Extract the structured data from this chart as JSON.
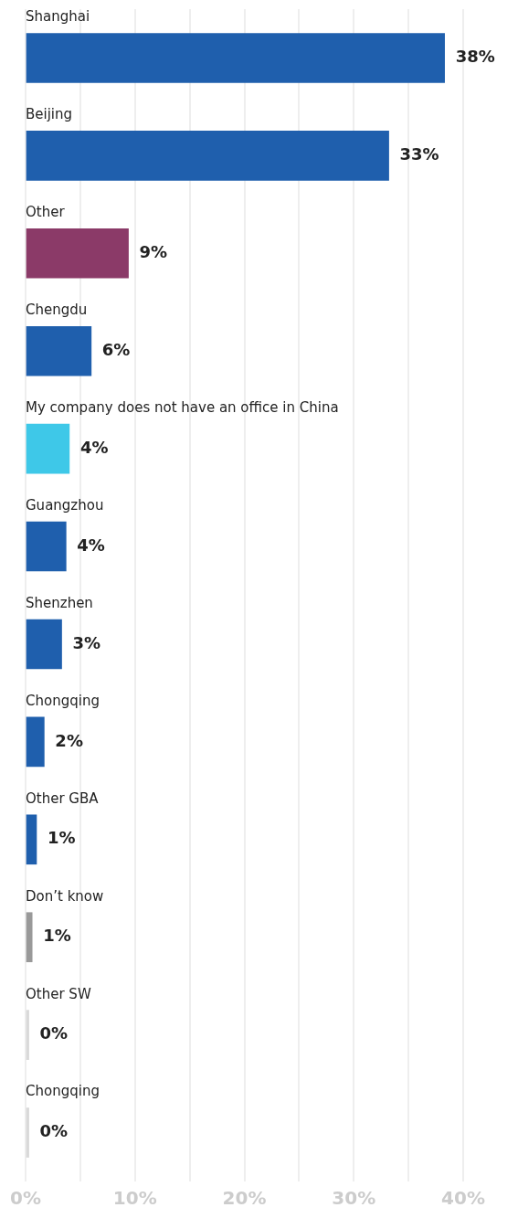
{
  "chart_data": {
    "type": "bar",
    "orientation": "horizontal",
    "categories": [
      "Shanghai",
      "Beijing",
      "Other",
      "Chengdu",
      "My company does not have an office in China",
      "Guangzhou",
      "Shenzhen",
      "Chongqing",
      "Other GBA",
      "Don’t know",
      "Other SW",
      "Chongqing"
    ],
    "values": [
      38.3,
      33.2,
      9.4,
      6,
      4,
      3.7,
      3.3,
      1.7,
      1,
      0.6,
      0.3,
      0.3
    ],
    "value_labels": [
      "38%",
      "33%",
      "9%",
      "6%",
      "4%",
      "4%",
      "3%",
      "2%",
      "1%",
      "1%",
      "0%",
      "0%"
    ],
    "colors": [
      "#1f5fad",
      "#1f5fad",
      "#8b3a68",
      "#1f5fad",
      "#3ec8e8",
      "#1f5fad",
      "#1f5fad",
      "#1f5fad",
      "#1f5fad",
      "#999999",
      "#d9d9d9",
      "#d9d9d9"
    ],
    "xlim": [
      0,
      40
    ],
    "xticks": [
      {
        "value": 0,
        "label": "0%"
      },
      {
        "value": 5,
        "label": null
      },
      {
        "value": 10,
        "label": "10%"
      },
      {
        "value": 15,
        "label": null
      },
      {
        "value": 20,
        "label": "20%"
      },
      {
        "value": 25,
        "label": null
      },
      {
        "value": 30,
        "label": "30%"
      },
      {
        "value": 35,
        "label": null
      },
      {
        "value": 40,
        "label": "40%"
      }
    ],
    "grid": "x",
    "legend": false
  }
}
